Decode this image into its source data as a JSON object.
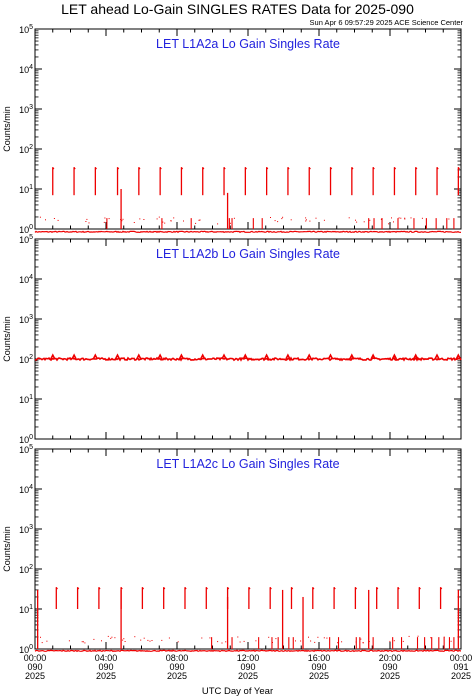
{
  "title": "LET ahead Lo-Gain SINGLES RATES Data for 2025-090",
  "timestamp": "Sun Apr  6 09:57:29 2025 ACE Science Center",
  "chart_data": {
    "type": "line",
    "x_axis": {
      "label": "UTC Day of Year",
      "unit": "hours",
      "range": [
        0,
        24
      ],
      "ticks": [
        {
          "hour": 0,
          "time": "00:00",
          "doy": "090",
          "year": "2025"
        },
        {
          "hour": 4,
          "time": "04:00",
          "doy": "090",
          "year": "2025"
        },
        {
          "hour": 8,
          "time": "08:00",
          "doy": "090",
          "year": "2025"
        },
        {
          "hour": 12,
          "time": "12:00",
          "doy": "090",
          "year": "2025"
        },
        {
          "hour": 16,
          "time": "16:00",
          "doy": "090",
          "year": "2025"
        },
        {
          "hour": 20,
          "time": "20:00",
          "doy": "090",
          "year": "2025"
        },
        {
          "hour": 24,
          "time": "00:00",
          "doy": "091",
          "year": "2025"
        }
      ]
    },
    "y_axis": {
      "label": "Counts/min",
      "scale": "log",
      "range": [
        1,
        100000
      ],
      "tick_labels": [
        {
          "base": "10",
          "exp": "0"
        },
        {
          "base": "10",
          "exp": "1"
        },
        {
          "base": "10",
          "exp": "2"
        },
        {
          "base": "10",
          "exp": "3"
        },
        {
          "base": "10",
          "exp": "4"
        },
        {
          "base": "10",
          "exp": "5"
        }
      ]
    },
    "line_color": "#ee0000",
    "panels": [
      {
        "title": "LET L1A2a Lo Gain Singles Rate",
        "baseline": 0.85,
        "spike_peak": 35,
        "spike_low": 7,
        "spike_hours": [
          1.0,
          2.2,
          3.4,
          4.65,
          5.85,
          7.05,
          8.25,
          9.45,
          10.65,
          11.85,
          13.05,
          14.25,
          15.45,
          16.65,
          17.85,
          19.05,
          20.25,
          21.45,
          22.65,
          23.85
        ],
        "drops": [
          {
            "hour": 4.85,
            "top": 10
          },
          {
            "hour": 10.85,
            "top": 8
          }
        ],
        "small_spikes": [
          4.05,
          7.15,
          8.8,
          10.95,
          11.1,
          12.3,
          12.8,
          18.8,
          19.1,
          19.55,
          20.45,
          21.35,
          22.05,
          22.6,
          23.2,
          23.6
        ]
      },
      {
        "title": "LET L1A2b Lo Gain Singles Rate",
        "baseline": 100,
        "spike_peak": 125,
        "spike_low": 100,
        "spike_hours": [
          1.0,
          2.2,
          3.4,
          4.65,
          5.85,
          7.05,
          8.25,
          9.45,
          10.65,
          11.85,
          13.05,
          14.25,
          15.45,
          16.65,
          17.85,
          19.05,
          20.25,
          21.45,
          22.65,
          23.85
        ],
        "drops": [],
        "small_spikes": []
      },
      {
        "title": "LET L1A2c Lo Gain Singles Rate",
        "baseline": 0.9,
        "spike_peak": 35,
        "spike_low": 10,
        "spike_hours": [
          1.2,
          2.4,
          3.6,
          4.85,
          6.05,
          7.25,
          8.45,
          9.65,
          10.85,
          12.05,
          13.25,
          14.45,
          15.65,
          16.85,
          18.05,
          19.25,
          20.45,
          21.65,
          22.85
        ],
        "drops": [
          {
            "hour": 0.15,
            "top": 30
          },
          {
            "hour": 4.85,
            "top": 30
          },
          {
            "hour": 10.85,
            "top": 20
          },
          {
            "hour": 13.95,
            "top": 30
          },
          {
            "hour": 15.1,
            "top": 20
          },
          {
            "hour": 18.8,
            "top": 30
          },
          {
            "hour": 23.85,
            "top": 30
          }
        ],
        "small_spikes": [
          9.95,
          11.1,
          12.6,
          13.35,
          13.7,
          14.3,
          14.55,
          16.6,
          17.1,
          18.1,
          18.3,
          19.05,
          20.15,
          20.65,
          21.55,
          21.95,
          22.35,
          22.75,
          23.05,
          23.35,
          23.6
        ]
      }
    ]
  }
}
